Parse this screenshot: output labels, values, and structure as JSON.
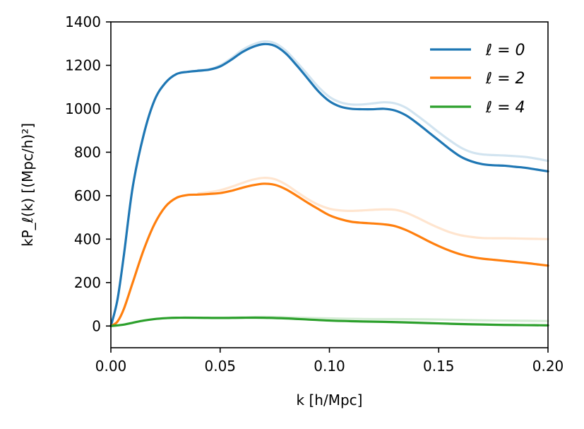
{
  "chart_data": {
    "type": "line",
    "title": "",
    "xlabel": "k [h/Mpc]",
    "ylabel": "kP_ℓ(k) [(Mpc/h)²]",
    "xlim": [
      0.0,
      0.2
    ],
    "ylim": [
      -100,
      1400
    ],
    "xticks": [
      0.0,
      0.05,
      0.1,
      0.15,
      0.2
    ],
    "xtick_labels": [
      "0.00",
      "0.05",
      "0.10",
      "0.15",
      "0.20"
    ],
    "yticks": [
      0,
      200,
      400,
      600,
      800,
      1000,
      1200,
      1400
    ],
    "ytick_labels": [
      "0",
      "200",
      "400",
      "600",
      "800",
      "1000",
      "1200",
      "1400"
    ],
    "grid": false,
    "legend_position": "top-right",
    "series": [
      {
        "name": "ℓ = 0",
        "color": "#1f77b4",
        "x": [
          0.0,
          0.003,
          0.006,
          0.01,
          0.015,
          0.02,
          0.025,
          0.03,
          0.035,
          0.04,
          0.045,
          0.05,
          0.055,
          0.06,
          0.065,
          0.07,
          0.075,
          0.08,
          0.085,
          0.09,
          0.095,
          0.1,
          0.105,
          0.11,
          0.115,
          0.12,
          0.125,
          0.13,
          0.135,
          0.14,
          0.145,
          0.15,
          0.155,
          0.16,
          0.165,
          0.17,
          0.175,
          0.18,
          0.185,
          0.19,
          0.195,
          0.2
        ],
        "y": [
          0,
          120,
          330,
          640,
          880,
          1040,
          1120,
          1160,
          1170,
          1175,
          1180,
          1195,
          1225,
          1260,
          1285,
          1298,
          1290,
          1255,
          1200,
          1140,
          1080,
          1035,
          1010,
          1000,
          998,
          998,
          1000,
          992,
          970,
          935,
          895,
          855,
          815,
          780,
          758,
          745,
          740,
          738,
          733,
          728,
          720,
          712
        ]
      },
      {
        "name": "ℓ = 2",
        "color": "#ff7f0e",
        "x": [
          0.0,
          0.003,
          0.006,
          0.01,
          0.015,
          0.02,
          0.025,
          0.03,
          0.035,
          0.04,
          0.045,
          0.05,
          0.055,
          0.06,
          0.065,
          0.07,
          0.075,
          0.08,
          0.085,
          0.09,
          0.095,
          0.1,
          0.105,
          0.11,
          0.115,
          0.12,
          0.125,
          0.13,
          0.135,
          0.14,
          0.145,
          0.15,
          0.155,
          0.16,
          0.165,
          0.17,
          0.175,
          0.18,
          0.185,
          0.19,
          0.195,
          0.2
        ],
        "y": [
          0,
          20,
          80,
          200,
          350,
          470,
          550,
          590,
          603,
          605,
          608,
          612,
          622,
          636,
          648,
          655,
          650,
          630,
          600,
          568,
          538,
          510,
          492,
          480,
          475,
          472,
          468,
          460,
          442,
          418,
          392,
          368,
          347,
          330,
          318,
          310,
          305,
          300,
          295,
          290,
          284,
          278
        ]
      },
      {
        "name": "ℓ = 4",
        "color": "#2ca02c",
        "x": [
          0.0,
          0.005,
          0.01,
          0.015,
          0.02,
          0.025,
          0.03,
          0.04,
          0.05,
          0.06,
          0.07,
          0.08,
          0.09,
          0.1,
          0.11,
          0.12,
          0.13,
          0.14,
          0.15,
          0.16,
          0.17,
          0.18,
          0.19,
          0.2
        ],
        "y": [
          0,
          5,
          15,
          25,
          32,
          36,
          38,
          38,
          37,
          38,
          38,
          35,
          30,
          25,
          22,
          20,
          18,
          15,
          12,
          9,
          7,
          5,
          4,
          3
        ]
      }
    ],
    "reference_series": [
      {
        "of": "ℓ = 0",
        "color": "#1f77b4",
        "opacity": 0.2,
        "x": [
          0.04,
          0.045,
          0.05,
          0.055,
          0.06,
          0.065,
          0.07,
          0.075,
          0.08,
          0.085,
          0.09,
          0.095,
          0.1,
          0.105,
          0.11,
          0.115,
          0.12,
          0.125,
          0.13,
          0.135,
          0.14,
          0.145,
          0.15,
          0.155,
          0.16,
          0.165,
          0.17,
          0.175,
          0.18,
          0.185,
          0.19,
          0.195,
          0.2
        ],
        "y": [
          1178,
          1182,
          1200,
          1232,
          1270,
          1296,
          1310,
          1302,
          1268,
          1215,
          1158,
          1100,
          1055,
          1030,
          1020,
          1020,
          1025,
          1030,
          1025,
          1005,
          970,
          932,
          892,
          855,
          822,
          800,
          790,
          787,
          785,
          782,
          778,
          770,
          760
        ]
      },
      {
        "of": "ℓ = 2",
        "color": "#ff7f0e",
        "opacity": 0.2,
        "x": [
          0.04,
          0.045,
          0.05,
          0.055,
          0.06,
          0.065,
          0.07,
          0.075,
          0.08,
          0.085,
          0.09,
          0.095,
          0.1,
          0.105,
          0.11,
          0.115,
          0.12,
          0.125,
          0.13,
          0.135,
          0.14,
          0.145,
          0.15,
          0.155,
          0.16,
          0.165,
          0.17,
          0.175,
          0.18,
          0.185,
          0.19,
          0.195,
          0.2
        ],
        "y": [
          610,
          616,
          625,
          640,
          658,
          674,
          682,
          676,
          652,
          618,
          585,
          558,
          540,
          532,
          530,
          532,
          535,
          537,
          535,
          522,
          500,
          475,
          452,
          432,
          418,
          410,
          405,
          404,
          404,
          403,
          402,
          401,
          400
        ]
      },
      {
        "of": "ℓ = 4",
        "color": "#2ca02c",
        "opacity": 0.2,
        "x": [
          0.04,
          0.05,
          0.06,
          0.07,
          0.08,
          0.09,
          0.1,
          0.11,
          0.12,
          0.13,
          0.14,
          0.15,
          0.16,
          0.17,
          0.18,
          0.19,
          0.2
        ],
        "y": [
          38,
          38,
          40,
          42,
          40,
          37,
          35,
          33,
          32,
          32,
          31,
          30,
          28,
          26,
          25,
          24,
          23
        ]
      }
    ]
  }
}
